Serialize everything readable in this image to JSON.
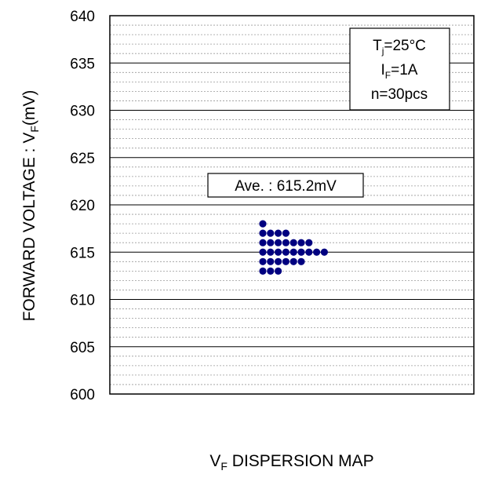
{
  "chart_data": {
    "type": "scatter",
    "title": "",
    "xlabel": "V",
    "xlabel_sub": "F",
    "xlabel_rest": " DISPERSION MAP",
    "ylabel": "FORWARD VOLTAGE : V",
    "ylabel_sub": "F",
    "ylabel_rest": "(mV)",
    "ylim": [
      600,
      640
    ],
    "y_ticks": [
      600,
      605,
      610,
      615,
      620,
      625,
      630,
      635,
      640
    ],
    "y_minor_step": 1,
    "grid": true,
    "dot_color": "#000080",
    "conditions": [
      {
        "main": "T",
        "sub": "j",
        "rest": "=25°C"
      },
      {
        "main": "I",
        "sub": "F",
        "rest": "=1A"
      },
      {
        "main": "n=30pcs",
        "sub": "",
        "rest": ""
      }
    ],
    "average_label": "Ave. : 615.2mV",
    "points": [
      {
        "y": 618,
        "count": 1
      },
      {
        "y": 617,
        "count": 4
      },
      {
        "y": 616,
        "count": 7
      },
      {
        "y": 615,
        "count": 9
      },
      {
        "y": 614,
        "count": 6
      },
      {
        "y": 613,
        "count": 3
      }
    ]
  }
}
